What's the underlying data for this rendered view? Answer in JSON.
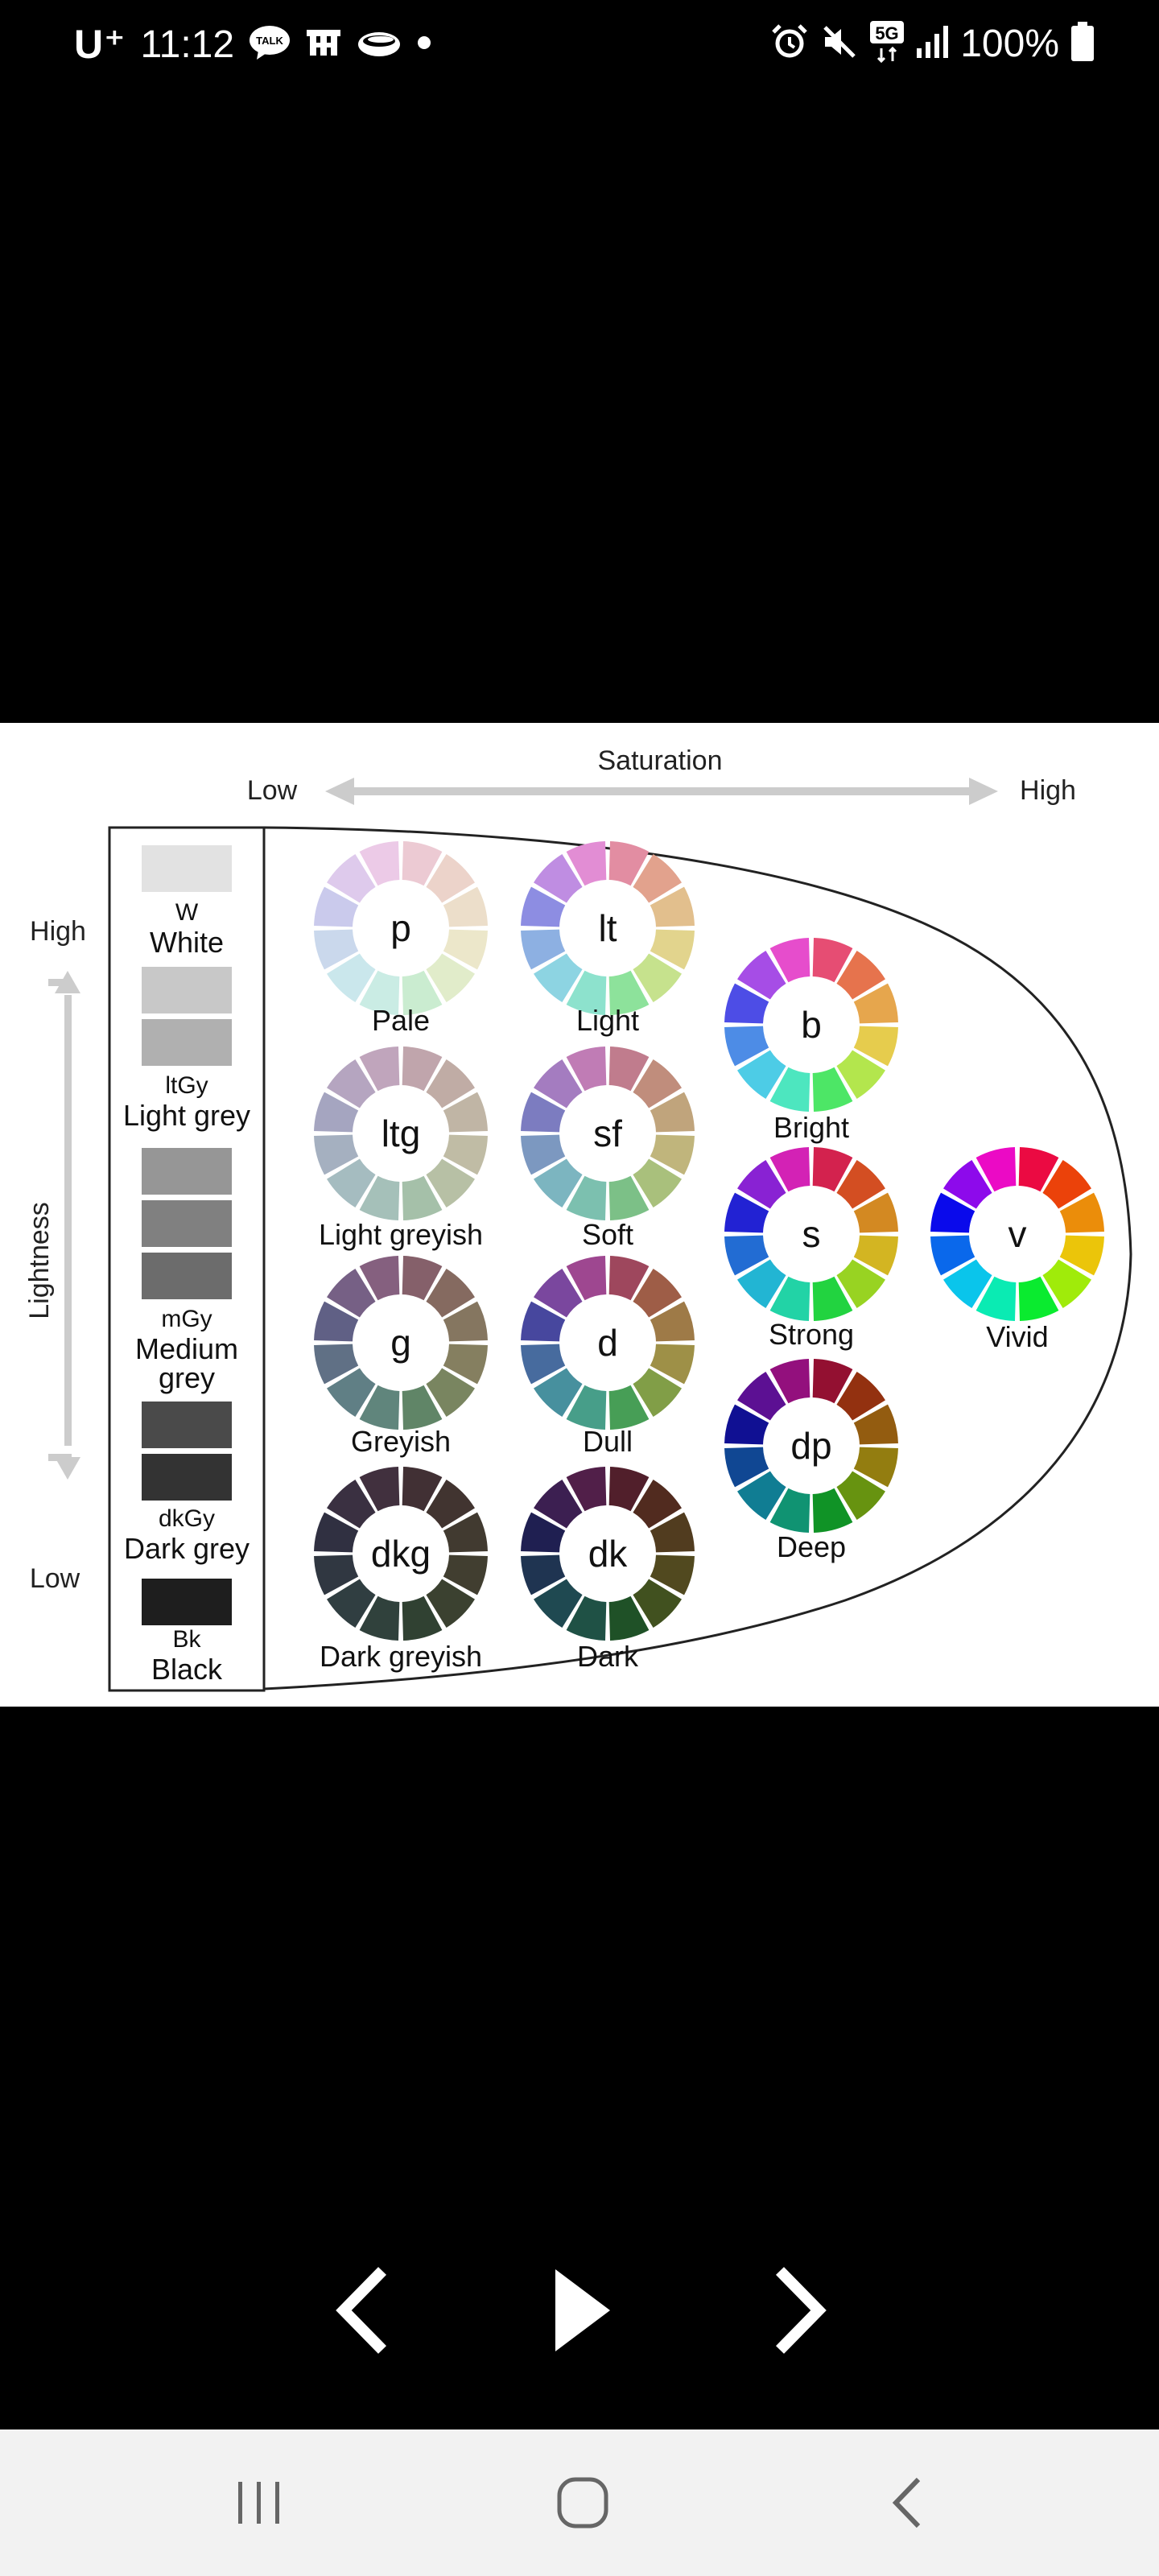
{
  "status_bar": {
    "carrier": "U⁺",
    "time": "11:12",
    "talk_badge": "TALK",
    "network": "5G",
    "battery": "100%",
    "icons": [
      "kakaotalk-icon",
      "app-icon",
      "cloud-icon",
      "dot-icon",
      "alarm-icon",
      "mute-icon",
      "network-5g-icon",
      "signal-icon",
      "battery-icon"
    ]
  },
  "chart": {
    "saturation_label": "Saturation",
    "saturation_low": "Low",
    "saturation_high": "High",
    "lightness_label": "Lightness",
    "lightness_high": "High",
    "lightness_low": "Low",
    "greys": [
      {
        "code": "W",
        "name": "White",
        "color": "#e2e2e2"
      },
      {
        "code": "ltGy",
        "name": "Light grey",
        "color": "#b0b0b0"
      },
      {
        "code": "mGy",
        "name": "Medium\ngrey",
        "color": "#6c6c6c"
      },
      {
        "code": "dkGy",
        "name": "Dark grey",
        "color": "#333333"
      },
      {
        "code": "Bk",
        "name": "Black",
        "color": "#1e1e1e"
      }
    ],
    "tones": [
      {
        "code": "p",
        "name": "Pale"
      },
      {
        "code": "lt",
        "name": "Light"
      },
      {
        "code": "b",
        "name": "Bright"
      },
      {
        "code": "ltg",
        "name": "Light greyish"
      },
      {
        "code": "sf",
        "name": "Soft"
      },
      {
        "code": "s",
        "name": "Strong"
      },
      {
        "code": "v",
        "name": "Vivid"
      },
      {
        "code": "g",
        "name": "Greyish"
      },
      {
        "code": "d",
        "name": "Dull"
      },
      {
        "code": "dp",
        "name": "Deep"
      },
      {
        "code": "dkg",
        "name": "Dark greyish"
      },
      {
        "code": "dk",
        "name": "Dark"
      }
    ]
  },
  "media_controls": {
    "icons": [
      "previous-icon",
      "play-icon",
      "next-icon"
    ]
  },
  "nav_bar": {
    "icons": [
      "recent-apps-icon",
      "home-icon",
      "back-icon"
    ]
  }
}
